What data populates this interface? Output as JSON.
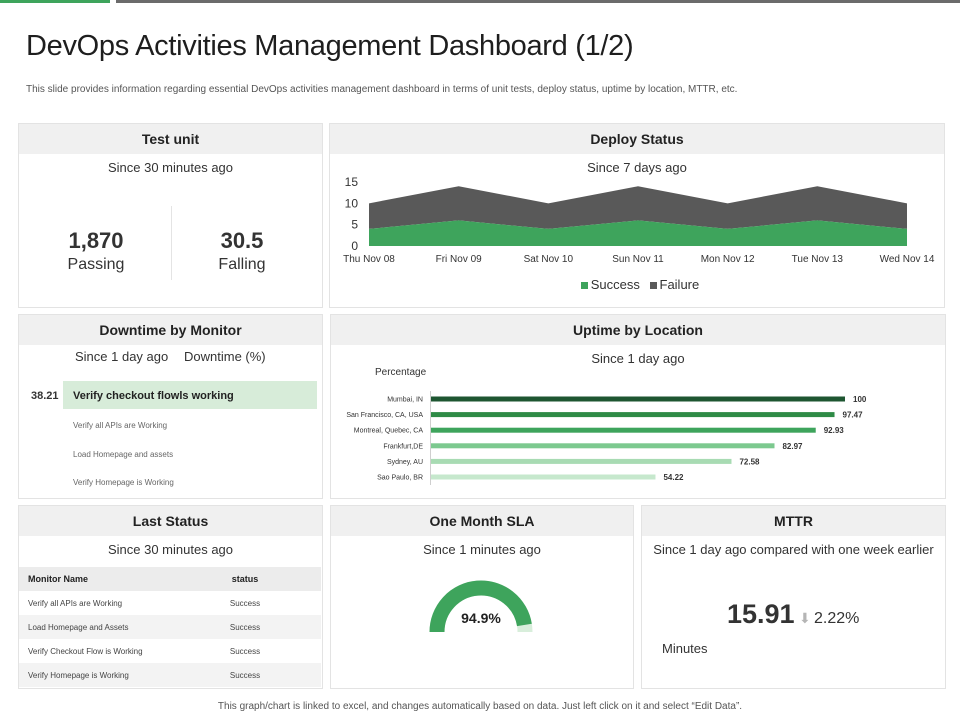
{
  "page": {
    "title": "DevOps Activities Management Dashboard (1/2)",
    "subtitle": "This slide provides information regarding essential DevOps activities management  dashboard in terms of unit tests, deploy status, uptime by location, MTTR,  etc.",
    "footer": "This graph/chart is linked to excel, and changes automatically based on data. Just left click on it and select “Edit Data”."
  },
  "test_unit": {
    "title": "Test unit",
    "since": "Since 30 minutes ago",
    "passing_value": "1,870",
    "passing_label": "Passing",
    "falling_value": "30.5",
    "falling_label": "Falling"
  },
  "deploy_status": {
    "title": "Deploy Status",
    "since": "Since 7 days ago",
    "colors": {
      "success": "#3ea45c",
      "failure": "#595959"
    }
  },
  "downtime": {
    "title": "Downtime by Monitor",
    "since": "Since 1 day ago",
    "column_label": "Downtime  (%)",
    "highlight_value": "38.21",
    "items": [
      "Verify checkout flowls working",
      "Verify all APIs are Working",
      "Load Homepage  and assets",
      "Verify Homepage is Working"
    ]
  },
  "uptime": {
    "title": "Uptime by Location",
    "since": "Since 1 day ago",
    "axis_title": "Percentage"
  },
  "last_status": {
    "title": "Last Status",
    "since": "Since 30 minutes ago",
    "columns": [
      "Monitor Name",
      "status"
    ],
    "rows": [
      [
        "Verify all APIs are Working",
        "Success"
      ],
      [
        "Load Homepage  and Assets",
        "Success"
      ],
      [
        "Verify Checkout Flow is Working",
        "Success"
      ],
      [
        "Verify Homepage is Working",
        "Success"
      ]
    ]
  },
  "sla": {
    "title": "One Month SLA",
    "since": "Since 1 minutes ago",
    "value_label": "94.9%",
    "value": 94.9,
    "colors": {
      "fill": "#3ea45c",
      "rest": "#d8eedb"
    }
  },
  "mttr": {
    "title": "MTTR",
    "since": "Since 1 day ago compared with one week earlier",
    "value": "15.91",
    "change": "2.22%",
    "unit": "Minutes",
    "arrow_icon": "down-arrow-icon"
  },
  "chart_data": [
    {
      "type": "area",
      "stacked": true,
      "categories": [
        "Thu Nov 08",
        "Fri Nov 09",
        "Sat Nov 10",
        "Sun Nov 11",
        "Mon Nov 12",
        "Tue Nov 13",
        "Wed Nov 14"
      ],
      "series": [
        {
          "name": "Success",
          "values": [
            4,
            6,
            4,
            6,
            4,
            6,
            4
          ]
        },
        {
          "name": "Failure",
          "values": [
            6,
            8,
            6,
            8,
            6,
            8,
            6
          ]
        }
      ],
      "yticks": [
        "15",
        "10",
        "5",
        "0"
      ],
      "ylim": [
        0,
        15
      ],
      "legend": "bottom",
      "grid": false
    },
    {
      "type": "bar",
      "orientation": "horizontal",
      "categories": [
        "Mumbai, IN",
        "San Francisco, CA, USA",
        "Montreal, Quebec, CA",
        "Frankfurt,DE",
        "Sydney, AU",
        "Sao Paulo, BR"
      ],
      "values": [
        100,
        97.47,
        92.93,
        82.97,
        72.58,
        54.22
      ],
      "value_labels": [
        "100",
        "97.47",
        "92.93",
        "82.97",
        "72.58",
        "54.22"
      ],
      "colors": [
        "#1e5631",
        "#2e8b46",
        "#3ea45c",
        "#7cc98f",
        "#a8dbb3",
        "#c6e8cd"
      ],
      "xlim": [
        0,
        100
      ]
    }
  ]
}
